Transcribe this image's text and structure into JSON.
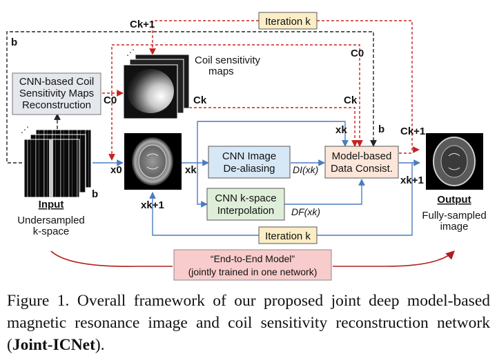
{
  "iteration_top": "Iteration k",
  "iteration_bottom": "Iteration k",
  "coil_box": [
    "CNN-based Coil",
    "Sensitivity Maps",
    "Reconstruction"
  ],
  "coil_maps_label": [
    "Coil sensitivity",
    "maps"
  ],
  "cnn_dealias": [
    "CNN Image",
    "De-aliasing"
  ],
  "cnn_kspace": [
    "CNN k-space",
    "Interpolation"
  ],
  "model_box": [
    "Model-based",
    "Data Consist."
  ],
  "input": {
    "title": "Input",
    "desc": [
      "Undersampled",
      "k-space"
    ]
  },
  "output": {
    "title": "Output",
    "desc": [
      "Fully-sampled",
      "image"
    ]
  },
  "end_to_end": [
    "“End-to-End Model”",
    "(jointly trained in one network)"
  ],
  "symbols": {
    "b": "b",
    "C0": "C0",
    "Ck": "Ck",
    "Ck1": "Ck+1",
    "x0": "x0",
    "xk": "xk",
    "xk1": "xk+1",
    "DI": "DI(xk)",
    "DF": "DF(xk)"
  },
  "caption": {
    "text": "Figure 1. Overall framework of our proposed joint deep model-based magnetic resonance image and coil sensitivity reconstruction network (",
    "bold": "Joint-ICNet",
    "tail": ")."
  },
  "colors": {
    "blue": "#4a7cc0",
    "red": "#c8201e",
    "black": "#222222",
    "iter_fill": "#fbedc6",
    "coil_fill": "#e4e7ec",
    "cnn_blue_fill": "#d6e7f6",
    "cnn_green_fill": "#dfeed9",
    "model_fill": "#fbe6d9",
    "e2e_fill": "#f8cccc"
  }
}
